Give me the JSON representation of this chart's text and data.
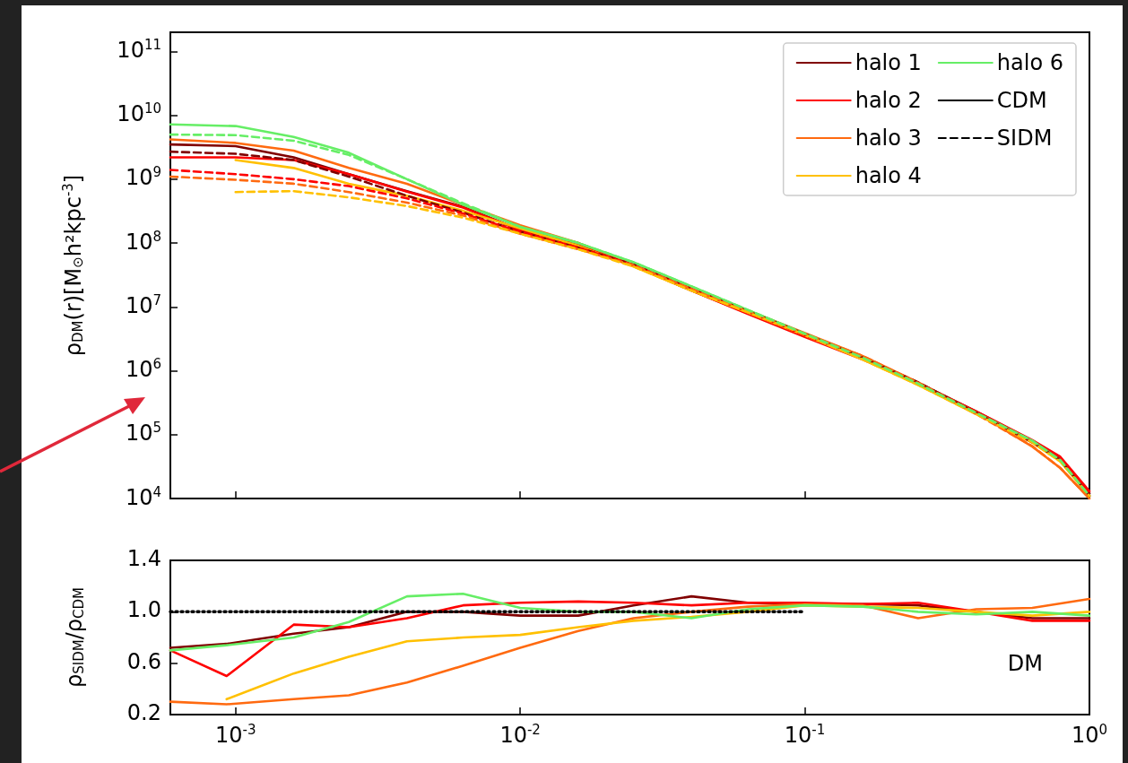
{
  "chart_data": [
    {
      "type": "line",
      "ylabel": "ρ$_{DM}$(r)[M$_{⊙}$h²kpc$^{-3}$]",
      "log": "xy",
      "grid": false,
      "marker": "none",
      "legend": "top right",
      "tick_labels": "y",
      "xlim": [
        0.00059,
        1
      ],
      "xticks": [
        {
          "value": 0.001,
          "label": null
        },
        {
          "value": 0.01,
          "label": null
        },
        {
          "value": 0.1,
          "label": null
        },
        {
          "value": 1,
          "label": null
        }
      ],
      "ylim": [
        10000,
        200000000000
      ],
      "yticks": [
        {
          "value": 10000,
          "label": "10$^{4}$"
        },
        {
          "value": 100000,
          "label": "10$^{5}$"
        },
        {
          "value": 1000000,
          "label": "10$^{6}$"
        },
        {
          "value": 10000000,
          "label": "10$^{7}$"
        },
        {
          "value": 100000000,
          "label": "10$^{8}$"
        },
        {
          "value": 1000000000,
          "label": "10$^{9}$"
        },
        {
          "value": 10000000000,
          "label": "10$^{10}$"
        },
        {
          "value": 100000000000,
          "label": "10$^{11}$"
        }
      ],
      "x": [
        0.00059,
        0.001,
        0.0016,
        0.0025,
        0.004,
        0.0063,
        0.01,
        0.016,
        0.025,
        0.04,
        0.063,
        0.1,
        0.16,
        0.25,
        0.4,
        0.63,
        0.79,
        1
      ],
      "series": [
        {
          "name": "halo 1",
          "color": "#800000",
          "line_style": "solid",
          "values": [
            3500000000,
            3300000000,
            2200000000,
            1200000000,
            650000000,
            370000000,
            160000000,
            100000000,
            45000000,
            18000000,
            8000000,
            3500000,
            1600000,
            650000,
            230000,
            80000,
            42000,
            12000
          ]
        },
        {
          "name": "halo 2",
          "color": "#ff0000",
          "line_style": "solid",
          "values": [
            2200000000,
            2200000000,
            2000000000,
            1200000000,
            640000000,
            360000000,
            160000000,
            95000000,
            44000000,
            18000000,
            7800000,
            3400000,
            1500000,
            640000,
            230000,
            82000,
            45000,
            13000
          ]
        },
        {
          "name": "halo 3",
          "color": "#ff6a10",
          "line_style": "solid",
          "values": [
            4200000000,
            3700000000,
            2800000000,
            1500000000,
            850000000,
            400000000,
            190000000,
            100000000,
            48000000,
            20000000,
            8800000,
            3900000,
            1700000,
            660000,
            220000,
            65000,
            30000,
            10000
          ]
        },
        {
          "name": "halo 4",
          "color": "#ffc000",
          "line_style": "solid",
          "values": [
            null,
            2000000000,
            1500000000,
            850000000,
            550000000,
            320000000,
            170000000,
            90000000,
            43000000,
            18000000,
            8200000,
            3600000,
            1500000,
            600000,
            210000,
            75000,
            38000,
            11000
          ]
        },
        {
          "name": "halo 6",
          "color": "#66ee66",
          "line_style": "solid",
          "values": [
            7200000000,
            6800000000,
            4600000000,
            2600000000,
            1000000000,
            400000000,
            180000000,
            100000000,
            50000000,
            21000000,
            9000000,
            3800000,
            1600000,
            630000,
            220000,
            80000,
            40000,
            11000
          ]
        },
        {
          "name": "CDM",
          "color": "#000000",
          "line_style": "solid",
          "values": [
            null,
            null,
            null,
            null,
            null,
            null,
            null,
            null,
            null,
            null,
            null,
            null,
            null,
            null,
            null,
            null,
            null,
            null
          ]
        },
        {
          "name": "SIDM",
          "color": "#000000",
          "line_style": "dashed",
          "values": [
            null,
            null,
            null,
            null,
            null,
            null,
            null,
            null,
            null,
            null,
            null,
            null,
            null,
            null,
            null,
            null,
            null,
            null
          ]
        },
        {
          "color": "#800000",
          "line_style": "dashed",
          "values": [
            2700000000,
            2500000000,
            2000000000,
            1100000000,
            550000000,
            300000000,
            150000000,
            85000000,
            46000000,
            19000000,
            8600000,
            3800000,
            1600000,
            660000,
            220000,
            76000,
            40000,
            11000
          ]
        },
        {
          "color": "#ff0000",
          "line_style": "dashed",
          "values": [
            1400000000,
            1200000000,
            1000000000,
            780000000,
            500000000,
            290000000,
            150000000,
            85000000,
            45000000,
            19000000,
            8400000,
            3600000,
            1600000,
            640000,
            220000,
            78000,
            41000,
            12000
          ]
        },
        {
          "color": "#ff6a10",
          "line_style": "dashed",
          "values": [
            1100000000,
            980000000,
            850000000,
            630000000,
            430000000,
            270000000,
            140000000,
            80000000,
            45000000,
            19000000,
            8700000,
            3800000,
            1700000,
            650000,
            210000,
            66000,
            30000,
            10000
          ]
        },
        {
          "color": "#ffc000",
          "line_style": "dashed",
          "values": [
            null,
            630000000,
            650000000,
            520000000,
            380000000,
            250000000,
            140000000,
            80000000,
            43000000,
            18000000,
            8300000,
            3700000,
            1500000,
            600000,
            210000,
            76000,
            38000,
            11000
          ]
        },
        {
          "color": "#66ee66",
          "line_style": "dashed",
          "values": [
            5000000000,
            4900000000,
            4000000000,
            2400000000,
            1000000000,
            420000000,
            180000000,
            100000000,
            50000000,
            21000000,
            9000000,
            3800000,
            1600000,
            630000,
            220000,
            80000,
            40000,
            11000
          ]
        }
      ]
    },
    {
      "type": "line",
      "ylabel": "ρ$_{SIDM}$/ρ$_{CDM}$",
      "log": "x",
      "grid": false,
      "marker": "none",
      "annotations": [
        "DM"
      ],
      "xlim": [
        0.00059,
        1
      ],
      "xticks": [
        {
          "value": 0.001,
          "label": "10$^{-3}$"
        },
        {
          "value": 0.01,
          "label": "10$^{-2}$"
        },
        {
          "value": 0.1,
          "label": "10$^{-1}$"
        },
        {
          "value": 1,
          "label": "10$^{0}$"
        }
      ],
      "ylim": [
        0.2,
        1.4
      ],
      "yticks": [
        0.2,
        0.6,
        {
          "value": 1,
          "label": "1.0"
        },
        1.4
      ],
      "x": [
        0.00059,
        0.00093,
        0.0016,
        0.0025,
        0.004,
        0.0063,
        0.01,
        0.016,
        0.025,
        0.04,
        0.063,
        0.1,
        0.16,
        0.25,
        0.4,
        0.63,
        1
      ],
      "series": [
        {
          "color": "#800000",
          "line_style": "solid",
          "values": [
            0.72,
            0.75,
            0.83,
            0.88,
            1.0,
            1.0,
            0.97,
            0.97,
            1.05,
            1.12,
            1.07,
            1.06,
            1.06,
            1.05,
            1.0,
            0.95,
            0.95
          ]
        },
        {
          "color": "#ff0000",
          "line_style": "solid",
          "values": [
            0.7,
            0.5,
            0.9,
            0.88,
            0.95,
            1.05,
            1.07,
            1.08,
            1.07,
            1.05,
            1.07,
            1.07,
            1.06,
            1.07,
            1.0,
            0.93,
            0.93
          ]
        },
        {
          "color": "#ff6a10",
          "line_style": "solid",
          "values": [
            0.3,
            0.28,
            0.32,
            0.35,
            0.45,
            0.58,
            0.72,
            0.85,
            0.95,
            1.0,
            1.04,
            1.06,
            1.05,
            0.95,
            1.02,
            1.03,
            1.1
          ]
        },
        {
          "color": "#ffc000",
          "line_style": "solid",
          "values": [
            null,
            0.32,
            0.52,
            0.65,
            0.77,
            0.8,
            0.82,
            0.88,
            0.93,
            0.96,
            1.0,
            1.05,
            1.04,
            1.03,
            1.0,
            0.97,
            1.0
          ]
        },
        {
          "color": "#66ee66",
          "line_style": "solid",
          "values": [
            0.7,
            0.74,
            0.8,
            0.92,
            1.12,
            1.14,
            1.03,
            1.0,
            1.0,
            0.95,
            1.02,
            1.05,
            1.04,
            1.0,
            0.98,
            1.0,
            0.97
          ]
        },
        {
          "color": "#000000",
          "line_style": "dotted",
          "x": [
            0.00059,
            0.1
          ],
          "values": [
            1,
            1
          ]
        }
      ]
    }
  ]
}
